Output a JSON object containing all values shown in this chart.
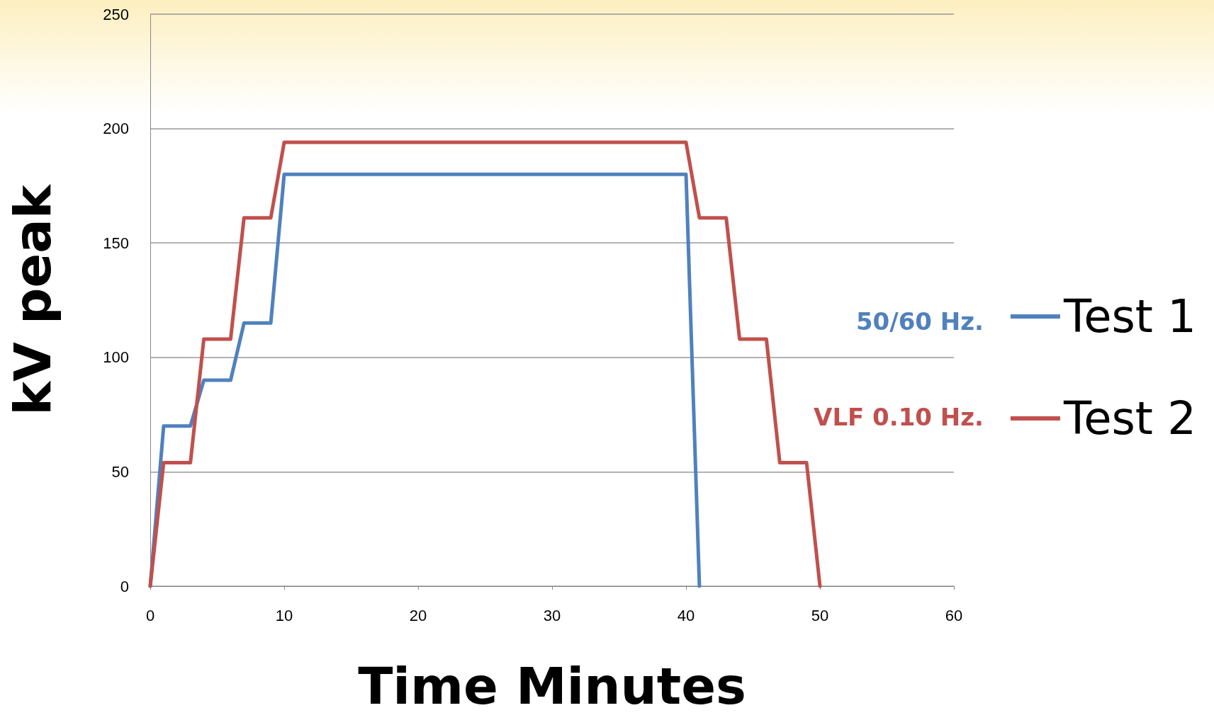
{
  "chart_data": {
    "type": "line",
    "xlabel": "Time Minutes",
    "ylabel": "kV peak",
    "series": [
      {
        "name": "Test 1",
        "color": "#4f81bd",
        "x": [
          0,
          1,
          3,
          4,
          6,
          7,
          9,
          10,
          40,
          41
        ],
        "values": [
          0,
          70,
          70,
          90,
          90,
          115,
          115,
          180,
          180,
          0
        ]
      },
      {
        "name": "Test 2",
        "color": "#c0504d",
        "x": [
          0,
          1,
          3,
          4,
          6,
          7,
          9,
          10,
          40,
          41,
          43,
          44,
          46,
          47,
          49,
          50
        ],
        "values": [
          0,
          54,
          54,
          108,
          108,
          161,
          161,
          194,
          194,
          161,
          161,
          108,
          108,
          54,
          54,
          0
        ]
      }
    ],
    "annotations": [
      "50/60 Hz.",
      "VLF 0.10 Hz."
    ],
    "xlim": [
      0,
      60
    ],
    "xticks": [
      0,
      10,
      20,
      30,
      40,
      50,
      60
    ],
    "ylim": [
      0,
      250
    ],
    "yticks": [
      0,
      50,
      100,
      150,
      200,
      250
    ],
    "grid": "y",
    "legend": "right",
    "marker": "none",
    "line_style": "solid"
  }
}
